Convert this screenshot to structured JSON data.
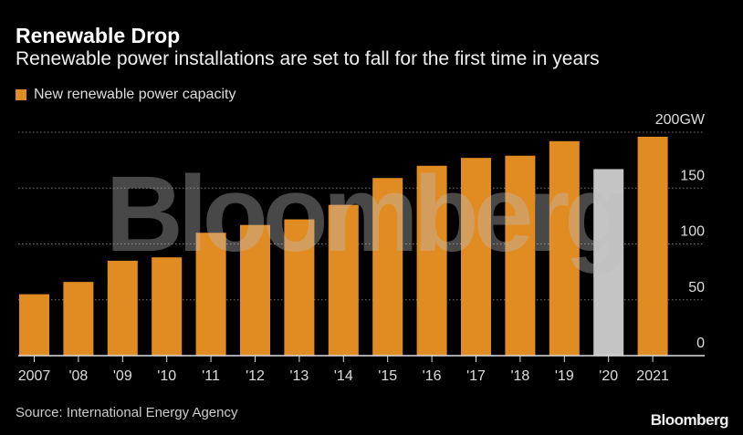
{
  "title": "Renewable Drop",
  "subtitle": "Renewable power installations are set to fall for the first time in years",
  "source": "Source: International Energy Agency",
  "logo": "Bloomberg",
  "watermark": "Bloomberg",
  "colors": {
    "series": "#e08c22",
    "highlight": "#c4c4c4",
    "background": "#000000"
  },
  "chart_data": {
    "type": "bar",
    "title": "Renewable Drop",
    "categories": [
      "2007",
      "'08",
      "'09",
      "'10",
      "'11",
      "'12",
      "'13",
      "'14",
      "'15",
      "'16",
      "'17",
      "'18",
      "'19",
      "'20",
      "2021"
    ],
    "series": [
      {
        "name": "New renewable power capacity",
        "values": [
          55,
          66,
          85,
          88,
          110,
          117,
          122,
          135,
          159,
          170,
          177,
          179,
          192,
          167,
          196
        ]
      }
    ],
    "highlighted_category": "'20",
    "ylim": [
      0,
      200
    ],
    "yticks": [
      0,
      50,
      100,
      150,
      200
    ],
    "ytick_labels": [
      "0",
      "50",
      "100",
      "150",
      "200GW"
    ],
    "yaxis_position": "right",
    "grid": true,
    "legend": "top-left"
  }
}
